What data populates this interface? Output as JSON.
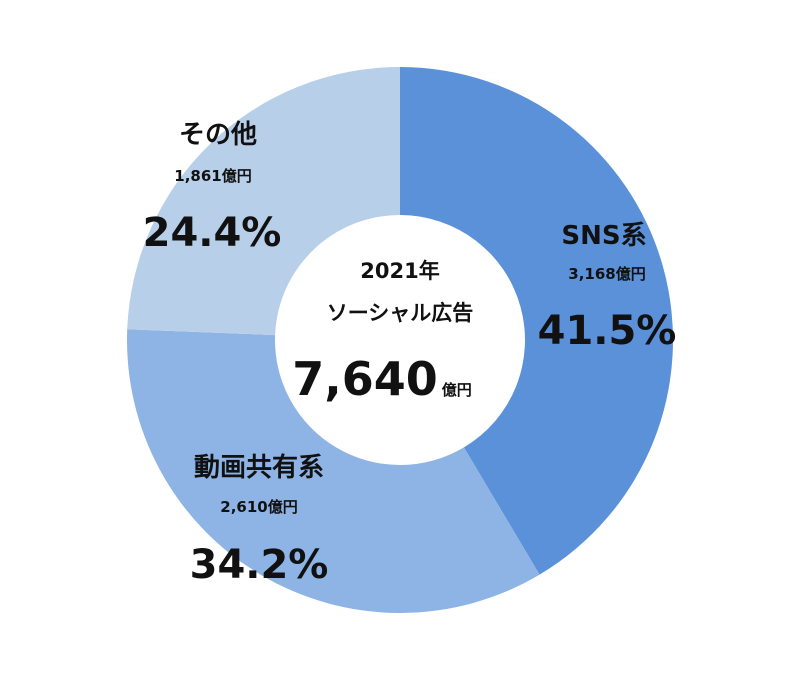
{
  "chart_data": {
    "type": "pie",
    "center": {
      "year": "2021年",
      "title": "ソーシャル広告",
      "total": "7,640",
      "unit": "億円"
    },
    "slices": [
      {
        "name": "SNS系",
        "amount": "3,168億円",
        "percent_label": "41.5%",
        "value": 41.5,
        "color": "#5a91d8"
      },
      {
        "name": "動画共有系",
        "amount": "2,610億円",
        "percent_label": "34.2%",
        "value": 34.2,
        "color": "#8db4e5"
      },
      {
        "name": "その他",
        "amount": "1,861億円",
        "percent_label": "24.4%",
        "value": 24.4,
        "color": "#b8cfea"
      }
    ],
    "start_angle_deg": 0,
    "direction": "clockwise",
    "legend": "none"
  }
}
